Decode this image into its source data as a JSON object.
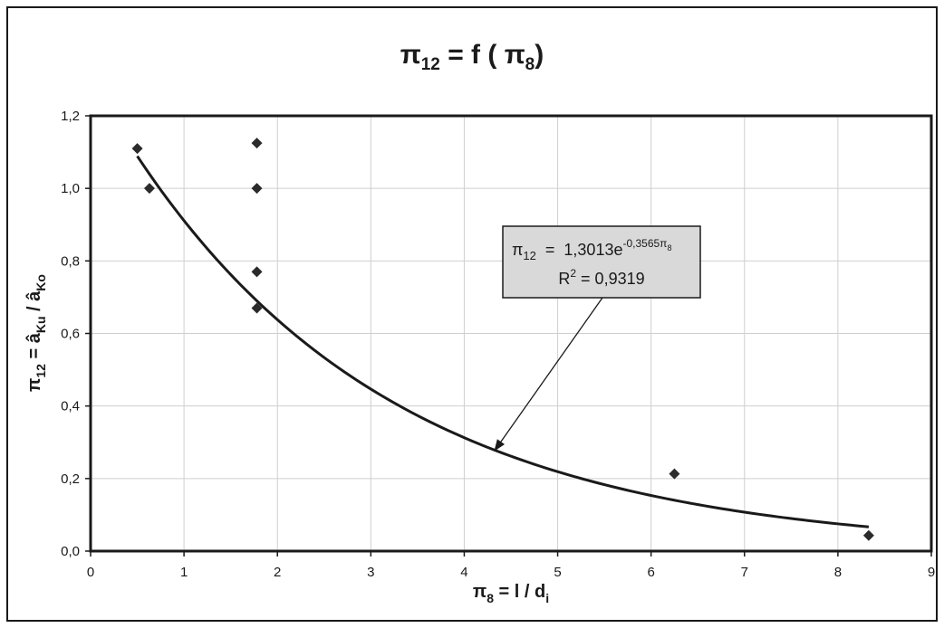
{
  "chart_data": {
    "type": "scatter",
    "title": {
      "base": "π",
      "sub": "12",
      "rest": " = f ( ",
      "base2": "π",
      "sub2": "8",
      "close": ")"
    },
    "xlabel": {
      "base": "π",
      "sub": "8",
      "rest": " = l / d",
      "sub2": "i"
    },
    "ylabel": {
      "base": "π",
      "sub": "12",
      "rest": " = â",
      "sub2": "Ku",
      "rest2": " / â",
      "sub3": "Ko"
    },
    "xlim": [
      0,
      9
    ],
    "ylim": [
      0,
      1.2
    ],
    "x_ticks": [
      0,
      1,
      2,
      3,
      4,
      5,
      6,
      7,
      8,
      9
    ],
    "x_tick_labels": [
      "0",
      "1",
      "2",
      "3",
      "4",
      "5",
      "6",
      "7",
      "8",
      "9"
    ],
    "y_ticks": [
      0,
      0.2,
      0.4,
      0.6,
      0.8,
      1.0,
      1.2
    ],
    "y_tick_labels": [
      "0,0",
      "0,2",
      "0,4",
      "0,6",
      "0,8",
      "1,0",
      "1,2"
    ],
    "grid": true,
    "series": [
      {
        "marker": "diamond",
        "color": "#2b2b2b",
        "points": [
          {
            "x": 0.5,
            "y": 1.11
          },
          {
            "x": 0.63,
            "y": 1.0
          },
          {
            "x": 1.78,
            "y": 1.125
          },
          {
            "x": 1.78,
            "y": 1.0
          },
          {
            "x": 1.78,
            "y": 0.77
          },
          {
            "x": 1.78,
            "y": 0.67
          },
          {
            "x": 6.25,
            "y": 0.213
          },
          {
            "x": 8.33,
            "y": 0.043
          }
        ]
      }
    ],
    "trendline": {
      "type": "exponential",
      "a": 1.3013,
      "b": -0.3565,
      "x_range": [
        0.5,
        8.33
      ],
      "color": "#1a1a1a"
    },
    "annotation": {
      "line1_base": "π",
      "line1_sub": "12",
      "line1_mid": "  =  1,3013e",
      "line1_sup": "-0,3565π",
      "line1_supsub": "8",
      "line2": "R",
      "line2_sup": "2",
      "line2_rest": " = 0,9319",
      "arrow_target": {
        "x": 4.32,
        "y": 0.275
      },
      "background": "#d9d9d9"
    }
  }
}
